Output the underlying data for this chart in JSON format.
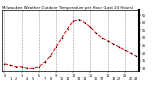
{
  "hours": [
    0,
    1,
    2,
    3,
    4,
    5,
    6,
    7,
    8,
    9,
    10,
    11,
    12,
    13,
    14,
    15,
    16,
    17,
    18,
    19,
    20,
    21,
    22,
    23
  ],
  "temps": [
    33,
    32,
    31,
    31,
    30,
    30,
    31,
    34,
    38,
    44,
    50,
    56,
    61,
    62,
    60,
    57,
    53,
    50,
    48,
    46,
    44,
    42,
    40,
    38
  ],
  "line_color": "#dd0000",
  "marker_color": "#000000",
  "bg_color": "#ffffff",
  "grid_color": "#999999",
  "title": "Milwaukee Weather Outdoor Temperature per Hour (Last 24 Hours)",
  "title_color": "#000000",
  "title_fontsize": 2.8,
  "ylim": [
    28,
    68
  ],
  "ytick_fontsize": 2.4,
  "xtick_fontsize": 2.4,
  "tick_label_color": "#000000",
  "linewidth": 0.7,
  "markersize": 1.5
}
